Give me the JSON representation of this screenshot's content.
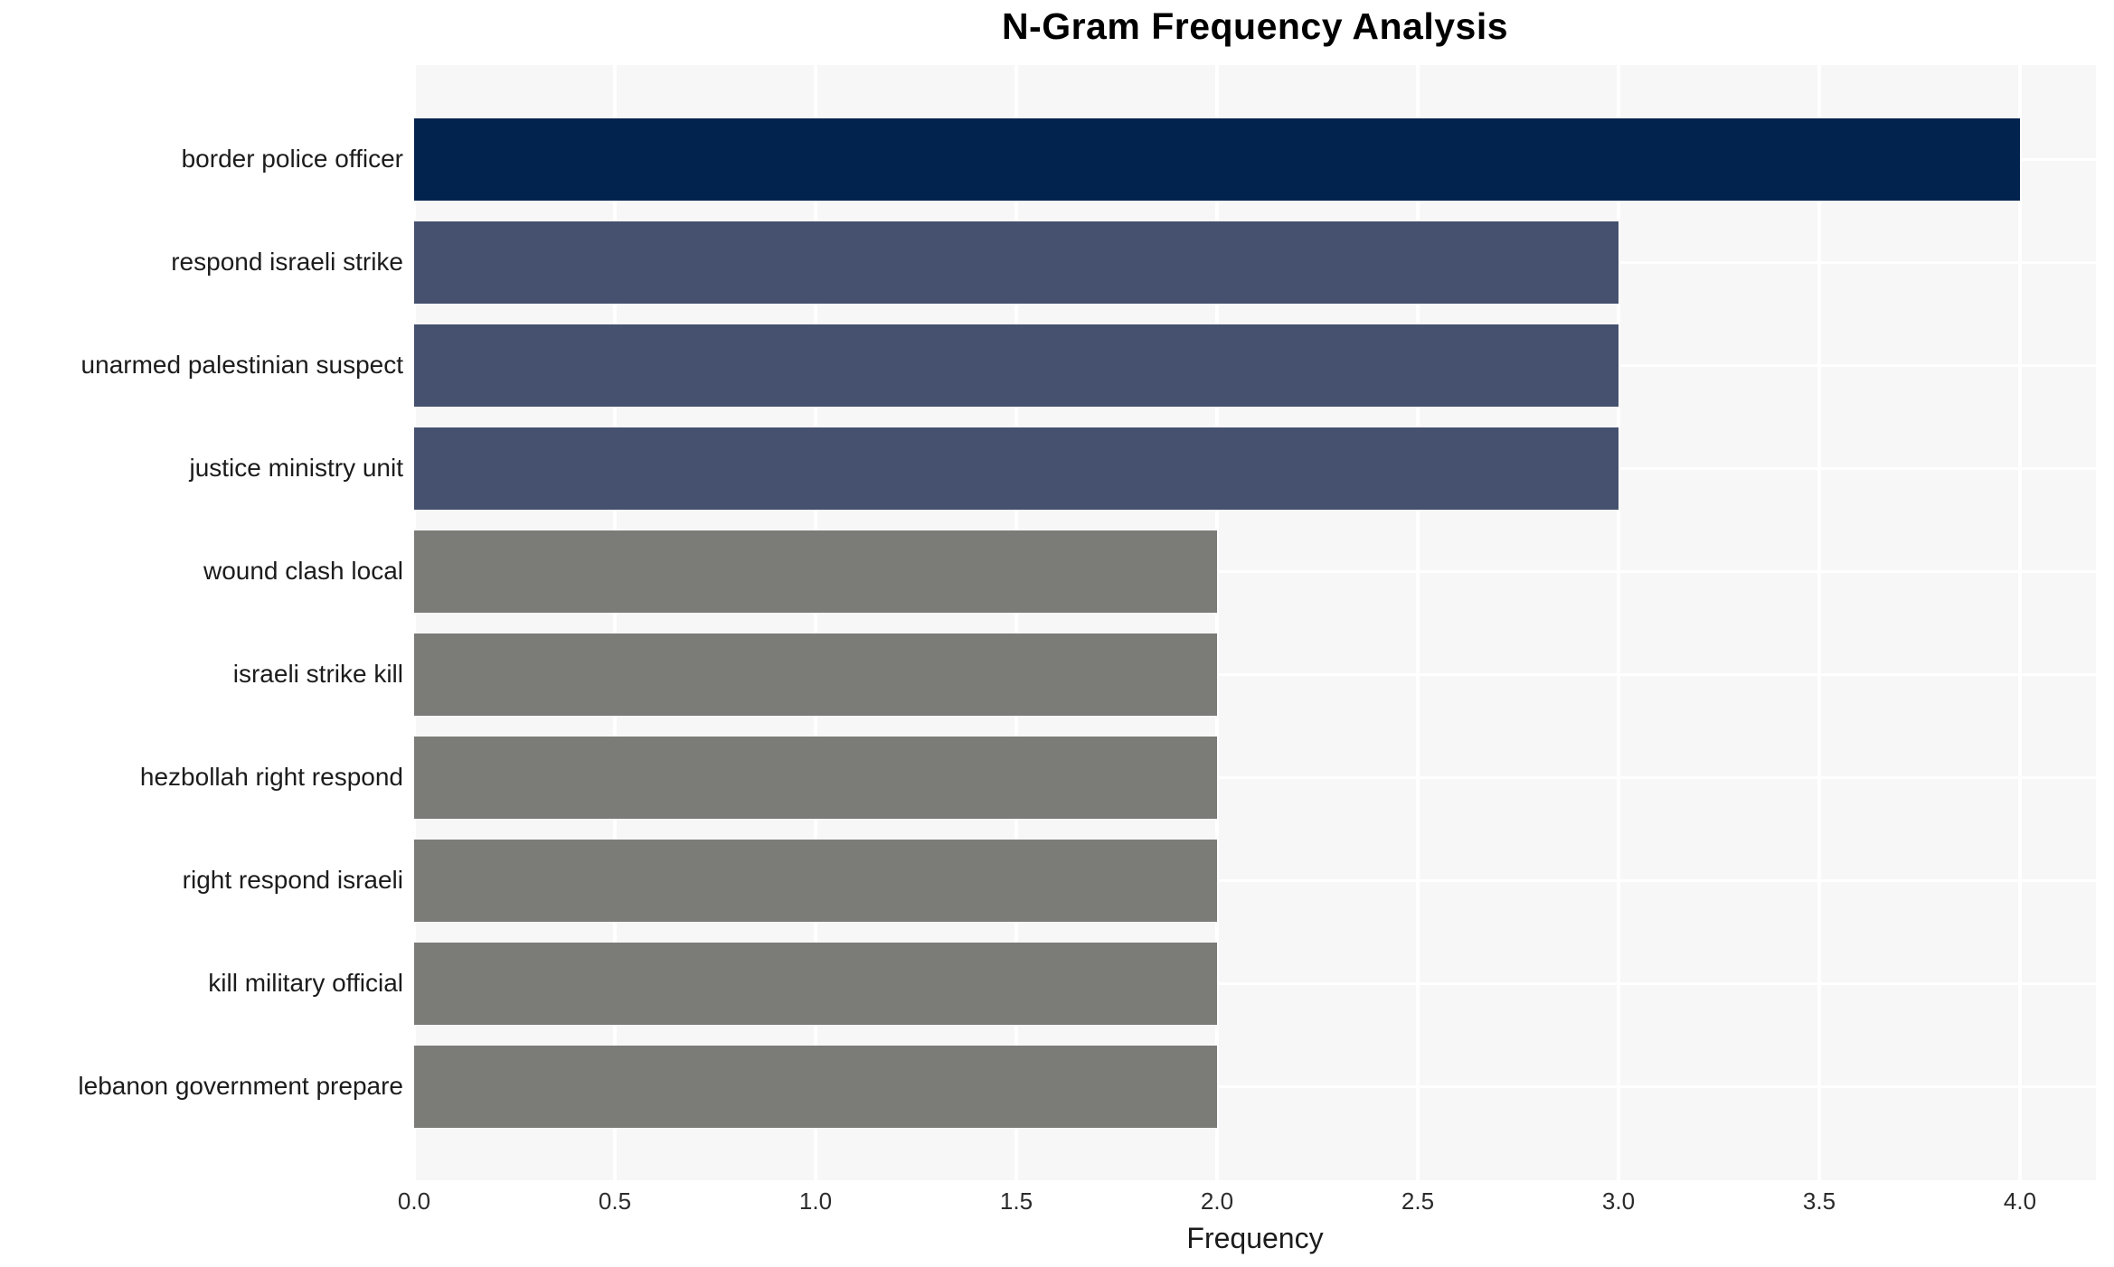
{
  "chart_data": {
    "type": "bar",
    "orientation": "horizontal",
    "title": "N-Gram Frequency Analysis",
    "xlabel": "Frequency",
    "ylabel": "",
    "categories": [
      "border police officer",
      "respond israeli strike",
      "unarmed palestinian suspect",
      "justice ministry unit",
      "wound clash local",
      "israeli strike kill",
      "hezbollah right respond",
      "right respond israeli",
      "kill military official",
      "lebanon government prepare"
    ],
    "values": [
      4,
      3,
      3,
      3,
      2,
      2,
      2,
      2,
      2,
      2
    ],
    "bar_colors": [
      "#02234e",
      "#46516f",
      "#46516f",
      "#46516f",
      "#7b7c78",
      "#7b7c78",
      "#7b7c78",
      "#7b7c78",
      "#7b7c78",
      "#7b7c78"
    ],
    "xticks": [
      {
        "value": 0.0,
        "label": "0.0"
      },
      {
        "value": 0.5,
        "label": "0.5"
      },
      {
        "value": 1.0,
        "label": "1.0"
      },
      {
        "value": 1.5,
        "label": "1.5"
      },
      {
        "value": 2.0,
        "label": "2.0"
      },
      {
        "value": 2.5,
        "label": "2.5"
      },
      {
        "value": 3.0,
        "label": "3.0"
      },
      {
        "value": 3.5,
        "label": "3.5"
      },
      {
        "value": 4.0,
        "label": "4.0"
      }
    ],
    "xlim": [
      0,
      4.19
    ],
    "grid": true,
    "legend": "none",
    "colors": {
      "plot_background": "#f7f7f8",
      "figure_background": "#ffffff",
      "gridline": "#ffffff",
      "title_text": "#000000",
      "tick_text": "#2b2b2b",
      "label_text": "#1c1c1c"
    }
  }
}
